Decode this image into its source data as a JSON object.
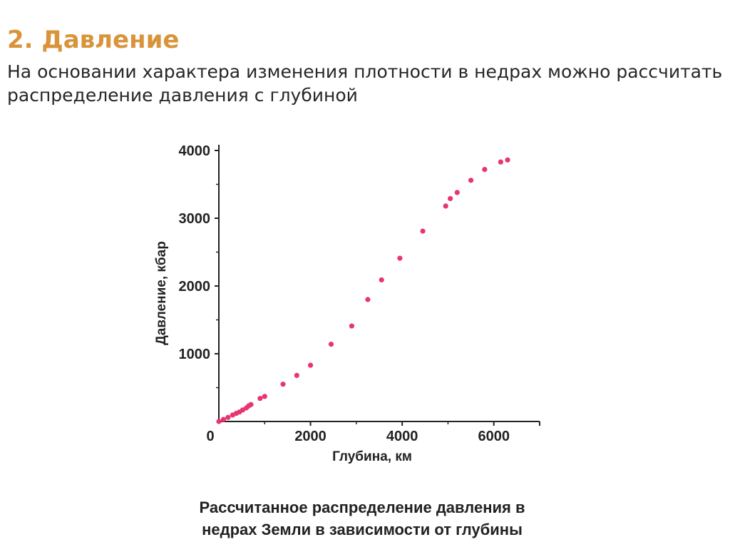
{
  "slide": {
    "title": "2. Давление",
    "text_line1": "На основании характера изменения плотности в недрах можно рассчитать",
    "text_line2": "распределение давления с глубиной"
  },
  "caption": {
    "line1": "Рассчитанное распределение давления в",
    "line2": "недрах Земли в зависимости от глубины"
  },
  "colors": {
    "title": "#d9943b",
    "points": "#e8356f",
    "axis": "#222222"
  },
  "chart_data": {
    "type": "scatter",
    "xlabel": "Глубина, км",
    "ylabel": "Давление, кбар",
    "xlim": [
      0,
      7000
    ],
    "ylim": [
      0,
      4000
    ],
    "xticks": [
      {
        "value": 0,
        "label": "0"
      },
      {
        "value": 2000,
        "label": "2000"
      },
      {
        "value": 4000,
        "label": "4000"
      },
      {
        "value": 6000,
        "label": "6000"
      }
    ],
    "yticks": [
      {
        "value": 1000,
        "label": "1000"
      },
      {
        "value": 2000,
        "label": "2000"
      },
      {
        "value": 3000,
        "label": "3000"
      },
      {
        "value": 4000,
        "label": "4000"
      }
    ],
    "grid": false,
    "points": [
      {
        "x": 0,
        "y": 0
      },
      {
        "x": 100,
        "y": 30
      },
      {
        "x": 200,
        "y": 60
      },
      {
        "x": 300,
        "y": 95
      },
      {
        "x": 380,
        "y": 120
      },
      {
        "x": 450,
        "y": 140
      },
      {
        "x": 520,
        "y": 170
      },
      {
        "x": 600,
        "y": 200
      },
      {
        "x": 650,
        "y": 230
      },
      {
        "x": 700,
        "y": 250
      },
      {
        "x": 900,
        "y": 340
      },
      {
        "x": 1000,
        "y": 370
      },
      {
        "x": 1400,
        "y": 550
      },
      {
        "x": 1700,
        "y": 680
      },
      {
        "x": 2000,
        "y": 830
      },
      {
        "x": 2450,
        "y": 1140
      },
      {
        "x": 2900,
        "y": 1410
      },
      {
        "x": 3250,
        "y": 1800
      },
      {
        "x": 3550,
        "y": 2090
      },
      {
        "x": 3950,
        "y": 2410
      },
      {
        "x": 4450,
        "y": 2810
      },
      {
        "x": 4950,
        "y": 3180
      },
      {
        "x": 5050,
        "y": 3290
      },
      {
        "x": 5200,
        "y": 3380
      },
      {
        "x": 5500,
        "y": 3560
      },
      {
        "x": 5800,
        "y": 3720
      },
      {
        "x": 6150,
        "y": 3830
      },
      {
        "x": 6300,
        "y": 3860
      }
    ]
  }
}
